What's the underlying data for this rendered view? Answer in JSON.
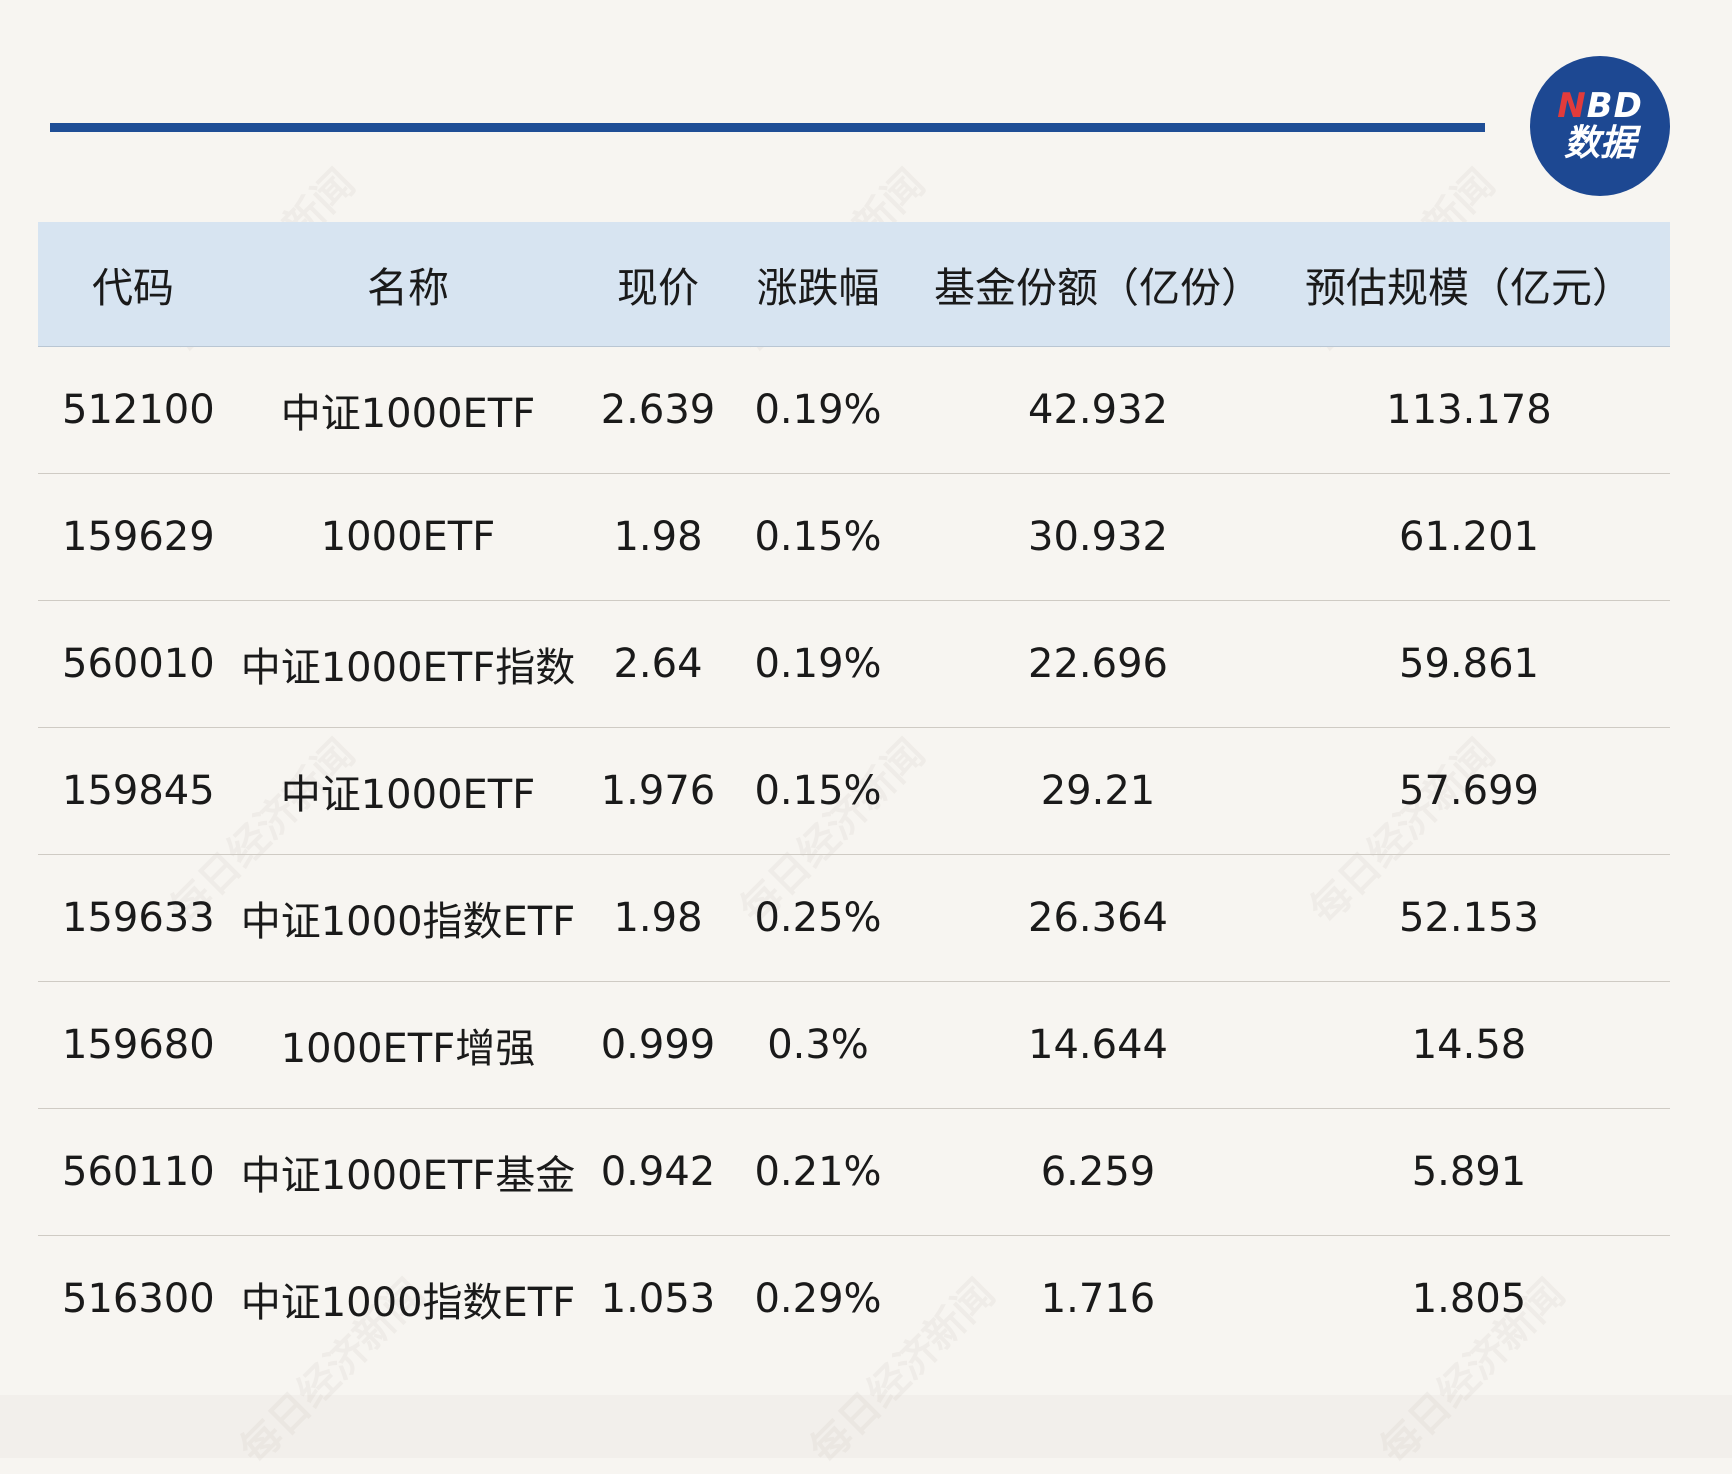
{
  "logo": {
    "letter_n": "N",
    "letters_bd": "BD",
    "line2": "数据"
  },
  "watermark": "每日经济新闻",
  "colors": {
    "accent": "#1f4e96",
    "header_bg": "#d7e4f1",
    "logo_red": "#e23b3b"
  },
  "table": {
    "columns": [
      "代码",
      "名称",
      "现价",
      "涨跌幅",
      "基金份额（亿份）",
      "预估规模（亿元）"
    ],
    "rows": [
      [
        "512100",
        "中证1000ETF",
        "2.639",
        "0.19%",
        "42.932",
        "113.178"
      ],
      [
        "159629",
        "1000ETF",
        "1.98",
        "0.15%",
        "30.932",
        "61.201"
      ],
      [
        "560010",
        "中证1000ETF指数",
        "2.64",
        "0.19%",
        "22.696",
        "59.861"
      ],
      [
        "159845",
        "中证1000ETF",
        "1.976",
        "0.15%",
        "29.21",
        "57.699"
      ],
      [
        "159633",
        "中证1000指数ETF",
        "1.98",
        "0.25%",
        "26.364",
        "52.153"
      ],
      [
        "159680",
        "1000ETF增强",
        "0.999",
        "0.3%",
        "14.644",
        "14.58"
      ],
      [
        "560110",
        "中证1000ETF基金",
        "0.942",
        "0.21%",
        "6.259",
        "5.891"
      ],
      [
        "516300",
        "中证1000指数ETF",
        "1.053",
        "0.29%",
        "1.716",
        "1.805"
      ]
    ]
  }
}
